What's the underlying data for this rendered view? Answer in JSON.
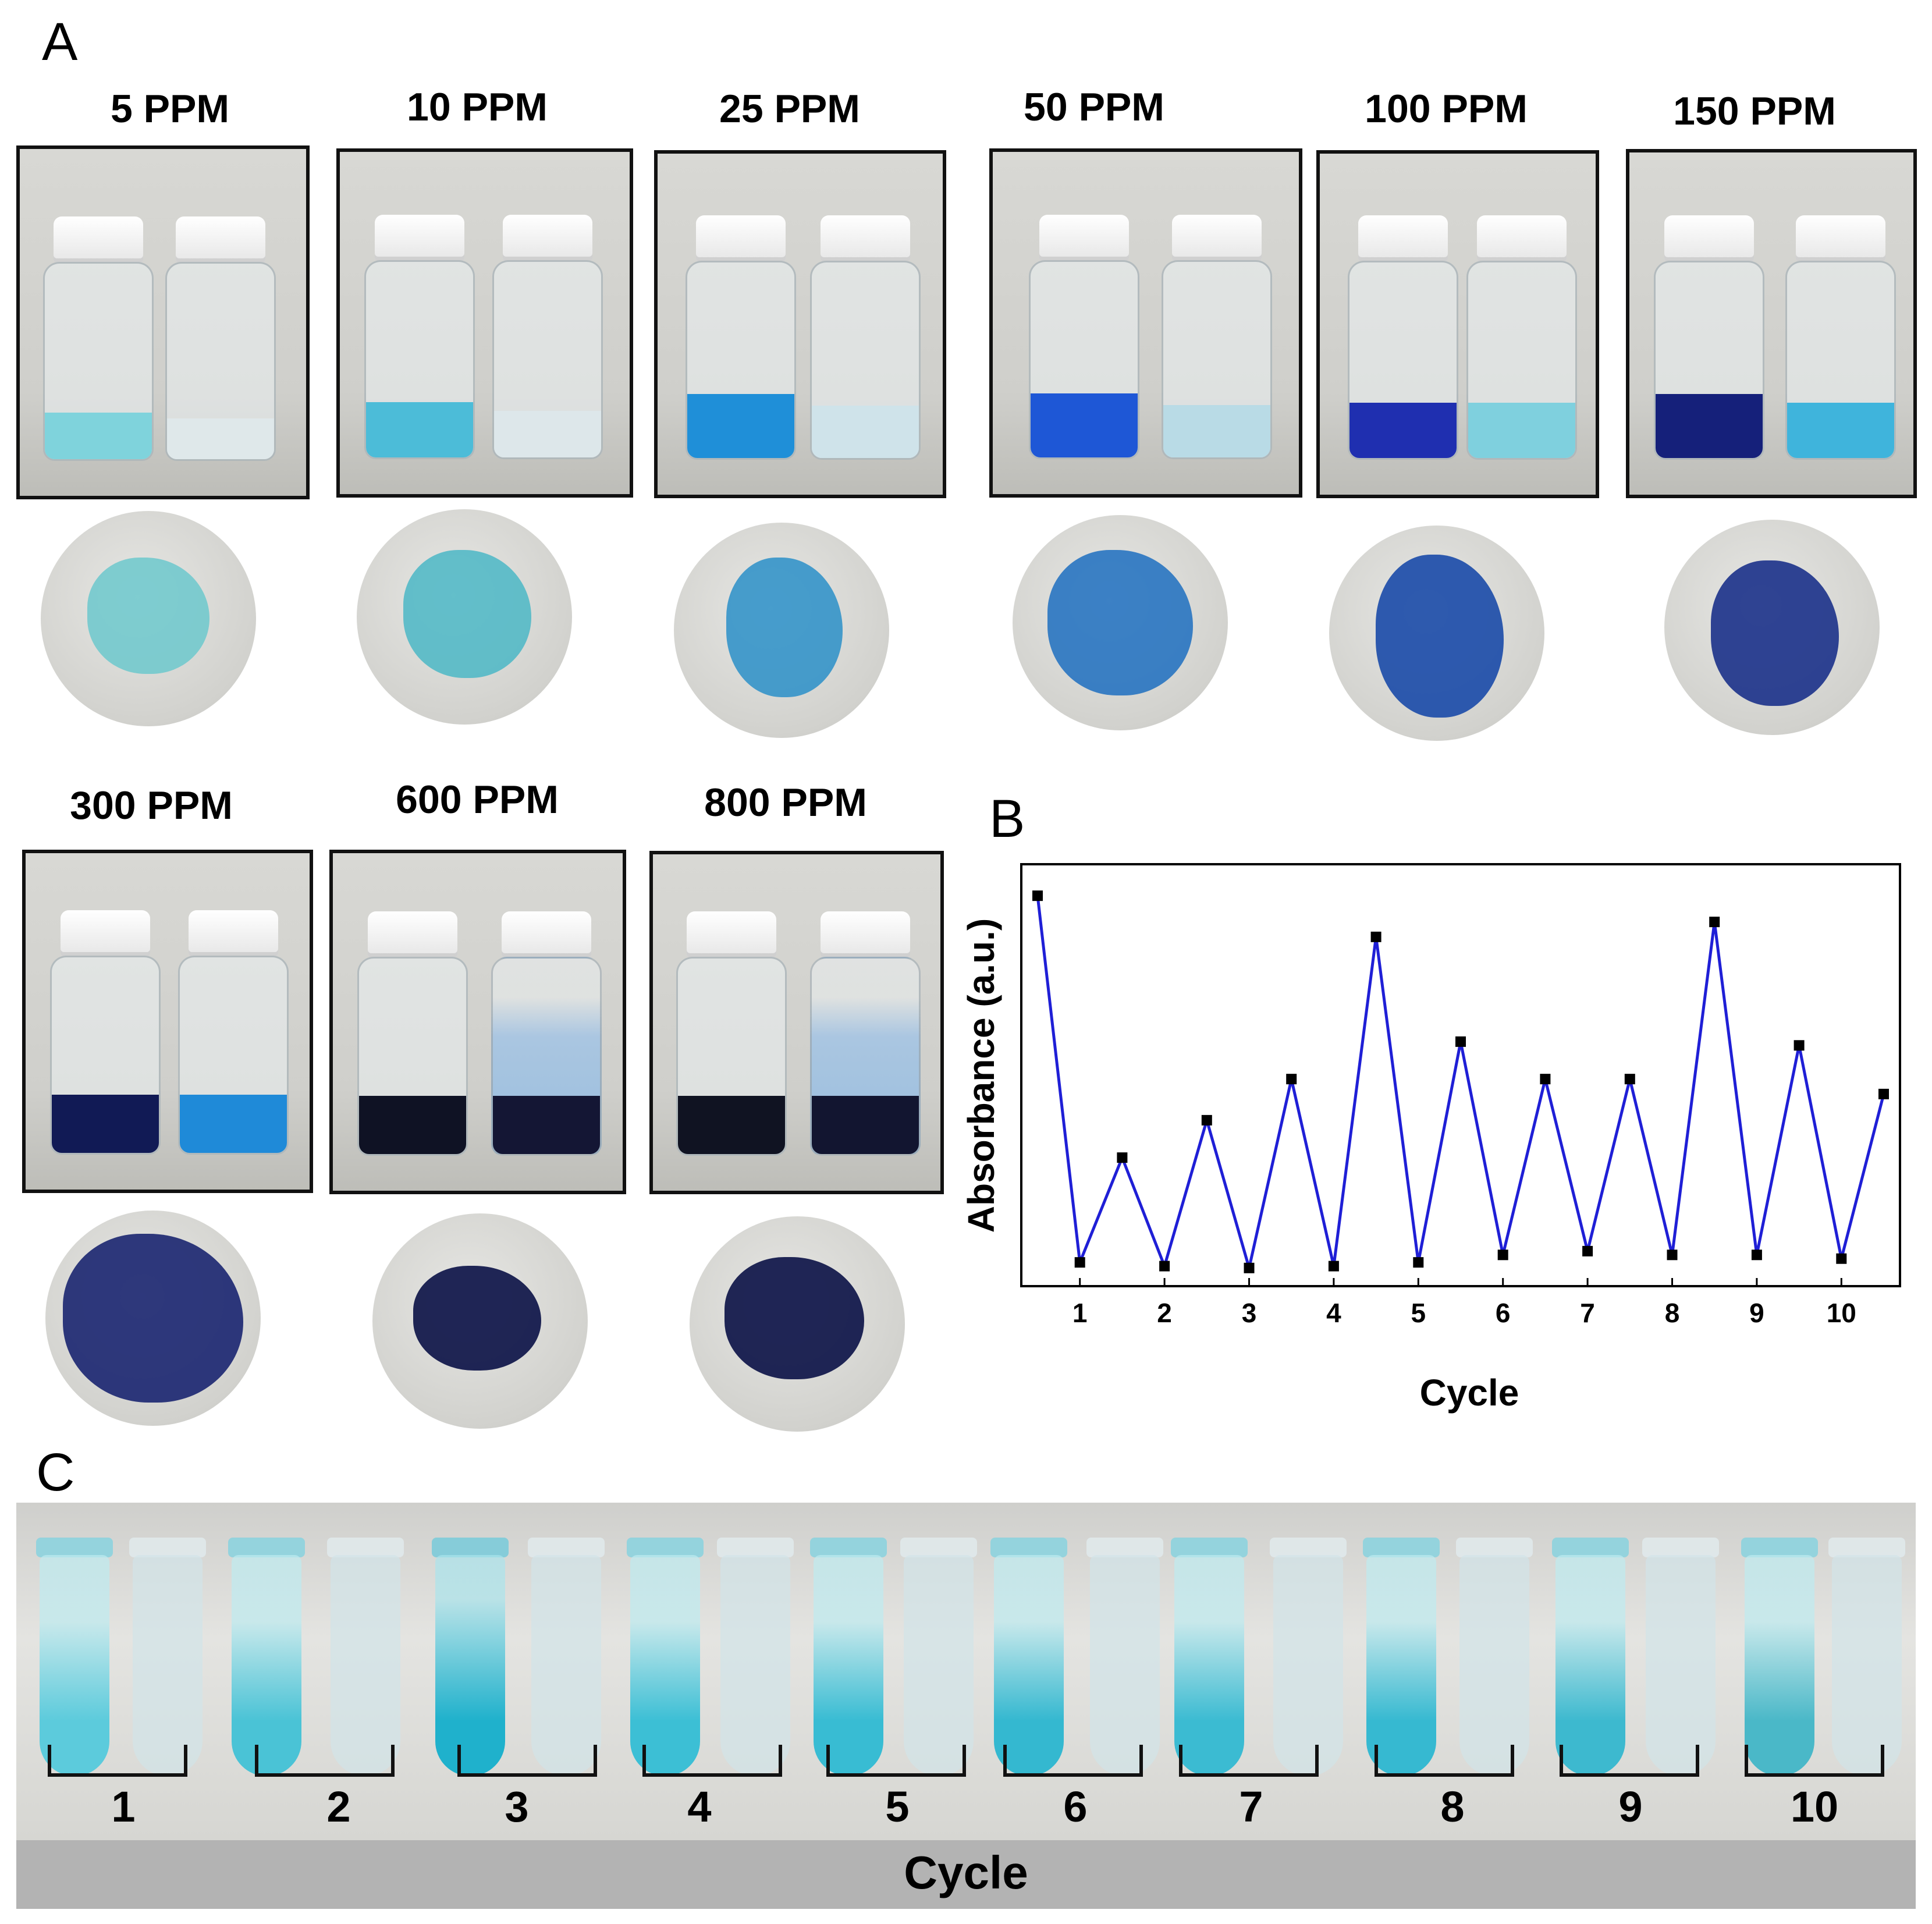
{
  "panel_a": {
    "letter": "A",
    "concentrations": [
      "5 PPM",
      "10 PPM",
      "25 PPM",
      "50 PPM",
      "100 PPM",
      "150 PPM",
      "300 PPM",
      "600 PPM",
      "800 PPM"
    ]
  },
  "panel_b": {
    "letter": "B"
  },
  "panel_c": {
    "letter": "C",
    "cycle_numbers": [
      "1",
      "2",
      "3",
      "4",
      "5",
      "6",
      "7",
      "8",
      "9",
      "10"
    ],
    "axis_title": "Cycle"
  },
  "chart_data": {
    "type": "line",
    "title": "",
    "xlabel": "Cycle",
    "ylabel": "Absorbance (a.u.)",
    "x": [
      0.5,
      1,
      1.5,
      2,
      2.5,
      3,
      3.5,
      4,
      4.5,
      5,
      5.5,
      6,
      6.5,
      7,
      7.5,
      8,
      8.5,
      9,
      9.5,
      10,
      10.5
    ],
    "y": [
      1.0,
      0.02,
      0.3,
      0.01,
      0.4,
      0.005,
      0.51,
      0.01,
      0.89,
      0.02,
      0.61,
      0.04,
      0.51,
      0.05,
      0.51,
      0.04,
      0.93,
      0.04,
      0.6,
      0.03,
      0.47
    ],
    "xticks": [
      "1",
      "2",
      "3",
      "4",
      "5",
      "6",
      "7",
      "8",
      "9",
      "10"
    ],
    "xlim": [
      0.5,
      10.5
    ],
    "ylim": [
      0,
      1.05
    ],
    "series_color": "#1f1fd6",
    "marker_color": "#000000",
    "grid": false
  }
}
